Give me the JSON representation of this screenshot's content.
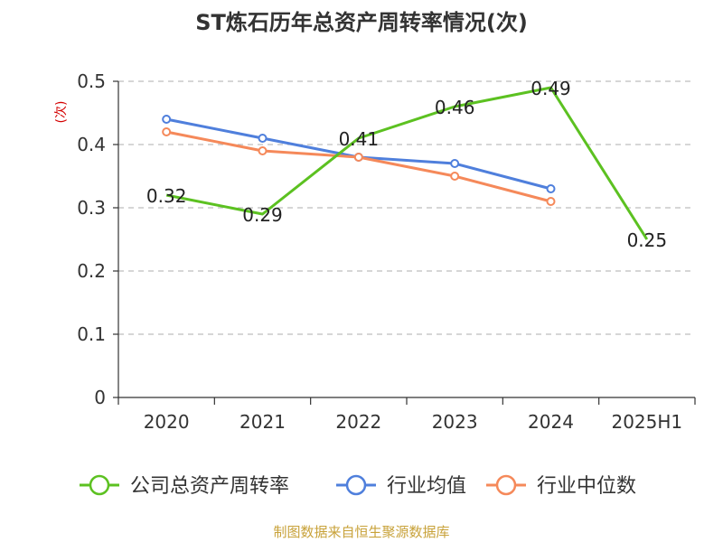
{
  "chart_data": {
    "type": "line",
    "title": "ST炼石历年总资产周转率情况(次)",
    "ylabel": "(次)",
    "xlabel": "",
    "categories": [
      "2020",
      "2021",
      "2022",
      "2023",
      "2024",
      "2025H1"
    ],
    "ylim": [
      0,
      0.5
    ],
    "yticks": [
      "0",
      "0.1",
      "0.2",
      "0.3",
      "0.4",
      "0.5"
    ],
    "grid": true,
    "legend_position": "bottom",
    "series": [
      {
        "name": "公司总资产周转率",
        "color": "#5cc121",
        "values": [
          0.32,
          0.29,
          0.41,
          0.46,
          0.49,
          0.25
        ],
        "show_labels": true,
        "markers": false
      },
      {
        "name": "行业均值",
        "color": "#4f7fdc",
        "values": [
          0.44,
          0.41,
          0.38,
          0.37,
          0.33,
          null
        ],
        "show_labels": false,
        "markers": true
      },
      {
        "name": "行业中位数",
        "color": "#f5895a",
        "values": [
          0.42,
          0.39,
          0.38,
          0.35,
          0.31,
          null
        ],
        "show_labels": false,
        "markers": true
      }
    ],
    "data_labels": [
      "0.32",
      "0.29",
      "0.41",
      "0.46",
      "0.49",
      "0.25"
    ]
  },
  "source": "制图数据来自恒生聚源数据库"
}
